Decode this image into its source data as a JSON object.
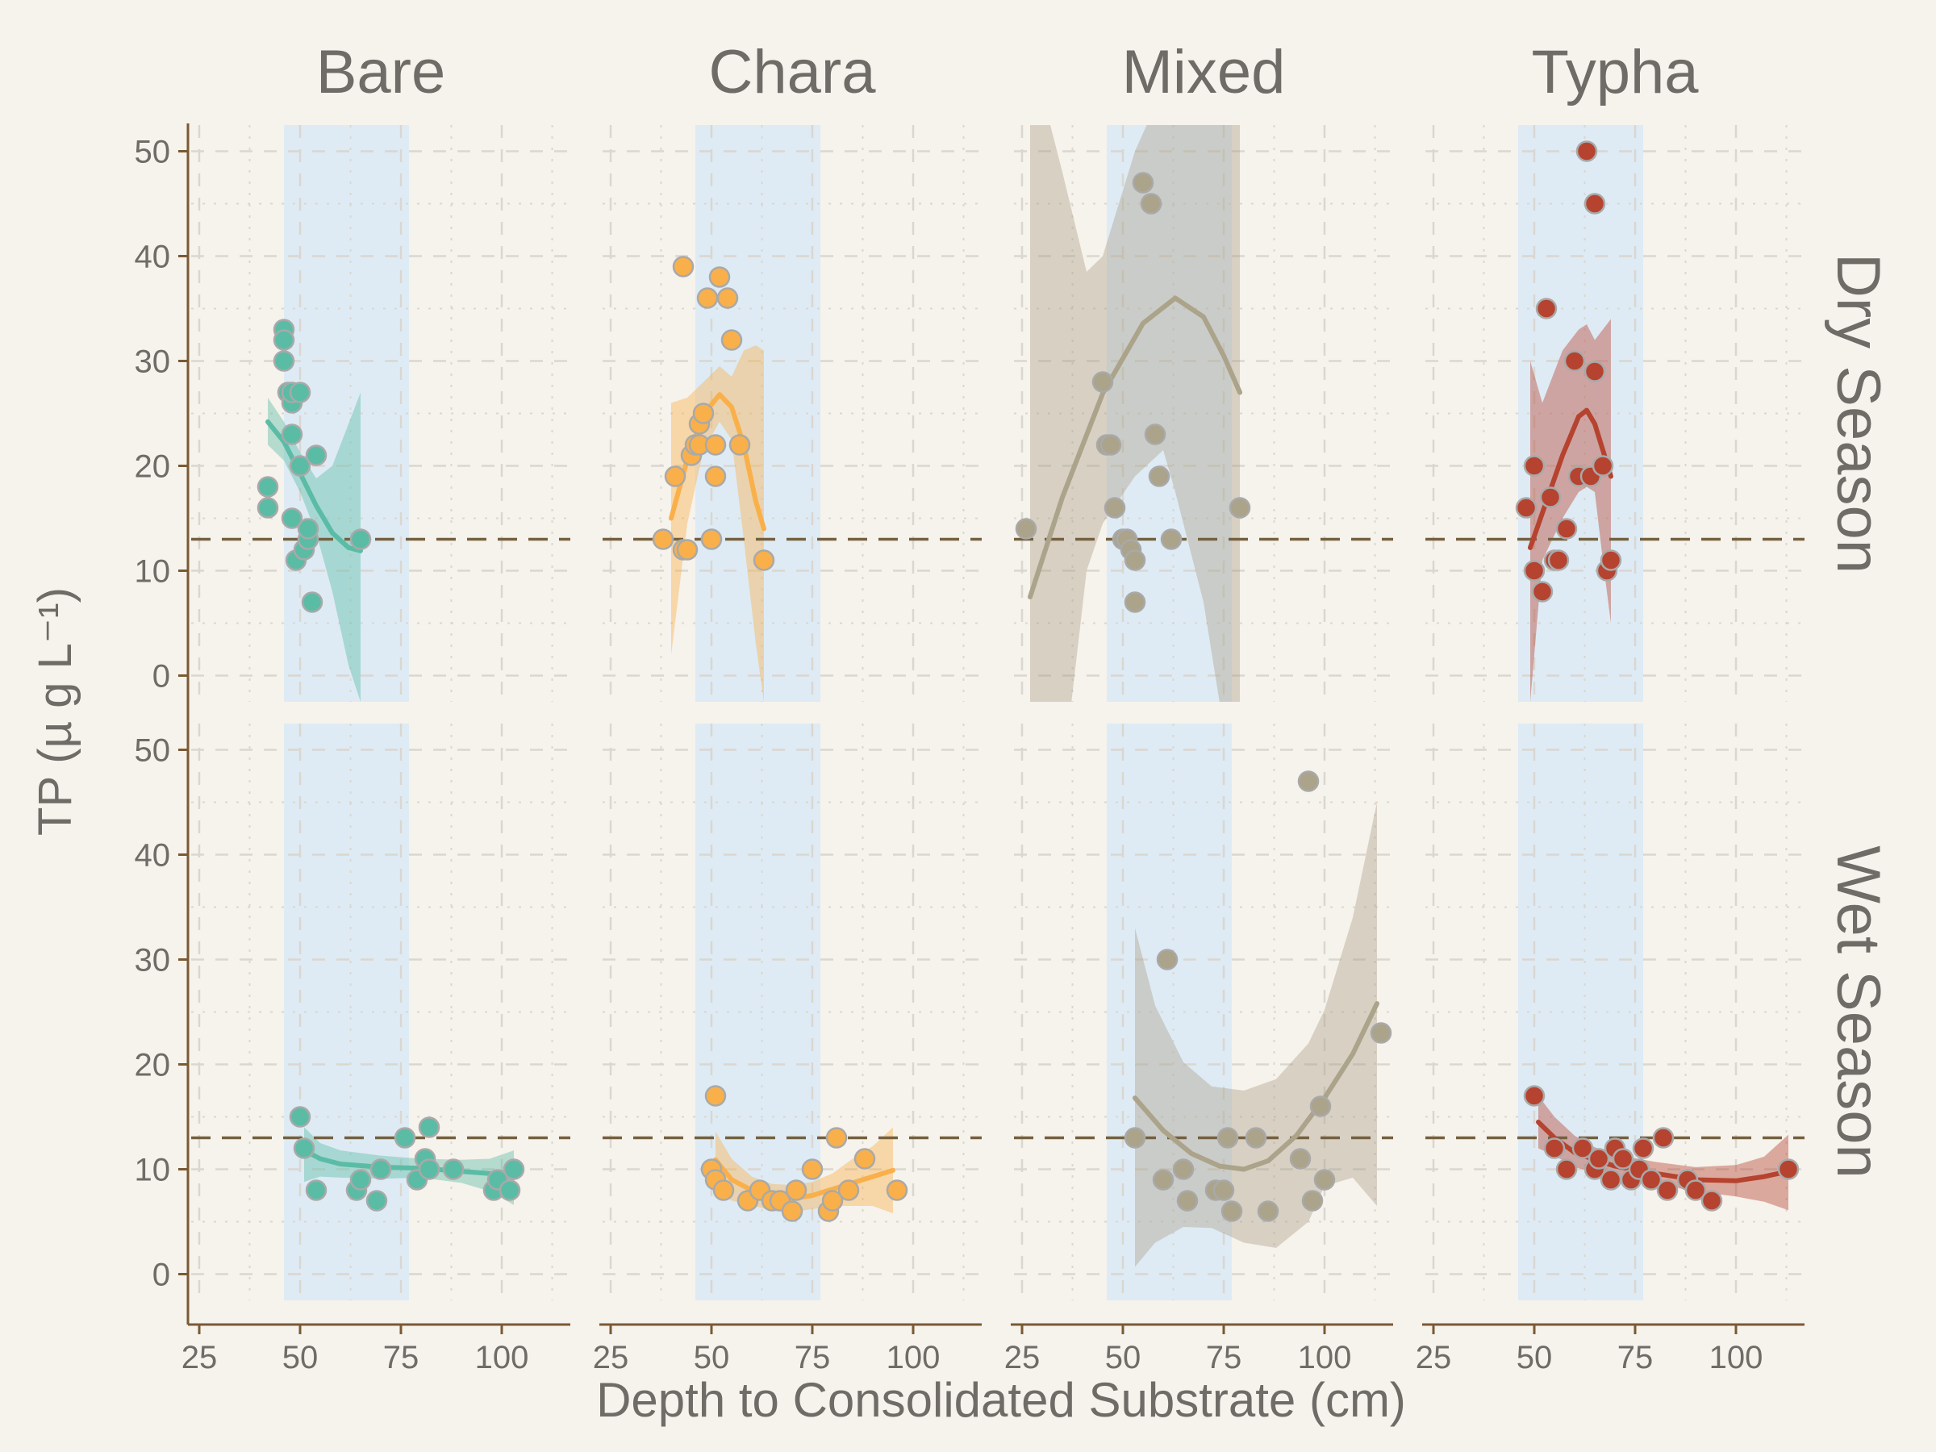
{
  "chart_data": {
    "type": "scatter",
    "facet_columns": [
      "Bare",
      "Chara",
      "Mixed",
      "Typha"
    ],
    "facet_rows": [
      "Dry Season",
      "Wet Season"
    ],
    "xlabel": "Depth to Consolidated Substrate (cm)",
    "ylabel": "TP (µ g L⁻¹)",
    "xlim": [
      23,
      117
    ],
    "ylim": [
      -2.5,
      52.5
    ],
    "x_ticks": [
      25,
      50,
      75,
      100
    ],
    "y_ticks": [
      0,
      10,
      20,
      30,
      40,
      50
    ],
    "reference_line_y": 13,
    "shaded_band_x": [
      46,
      77
    ],
    "grid": true,
    "colors": {
      "Bare": "#5BBCA5",
      "Chara": "#F9B04A",
      "Mixed": "#ABA38A",
      "Typha": "#B5432F",
      "band": "#DEEBF4",
      "background": "#F6F2EC",
      "axis": "#7A5A33",
      "refline": "#74603F",
      "grid": "#DAD6D0",
      "text": "#6F6B66"
    },
    "panels": [
      {
        "column": "Bare",
        "row": "Dry Season",
        "points": [
          [
            42,
            18
          ],
          [
            42,
            16
          ],
          [
            46,
            33
          ],
          [
            46,
            32
          ],
          [
            46,
            30
          ],
          [
            47,
            27
          ],
          [
            48,
            26
          ],
          [
            48,
            27
          ],
          [
            48,
            23
          ],
          [
            48,
            15
          ],
          [
            49,
            11
          ],
          [
            50,
            27
          ],
          [
            50,
            20
          ],
          [
            51,
            12
          ],
          [
            52,
            13
          ],
          [
            52,
            14
          ],
          [
            53,
            7
          ],
          [
            54,
            21
          ],
          [
            65,
            13
          ]
        ],
        "fit": [
          [
            42,
            24.2
          ],
          [
            46,
            22.3
          ],
          [
            50,
            19.3
          ],
          [
            54,
            16.2
          ],
          [
            58,
            13.6
          ],
          [
            62,
            12.2
          ],
          [
            65,
            11.9
          ]
        ],
        "ci": [
          [
            42,
            26.5,
            22.0
          ],
          [
            46,
            24.2,
            20.5
          ],
          [
            50,
            21.3,
            17.5
          ],
          [
            54,
            18.8,
            13.6
          ],
          [
            58,
            20.0,
            8.0
          ],
          [
            62,
            24.0,
            1.0
          ],
          [
            65,
            27.0,
            -2.5
          ]
        ]
      },
      {
        "column": "Chara",
        "row": "Dry Season",
        "points": [
          [
            38,
            13
          ],
          [
            41,
            19
          ],
          [
            43,
            39
          ],
          [
            43,
            12
          ],
          [
            44,
            12
          ],
          [
            45,
            21
          ],
          [
            46,
            22
          ],
          [
            47,
            24
          ],
          [
            47,
            22
          ],
          [
            48,
            25
          ],
          [
            49,
            36
          ],
          [
            50,
            13
          ],
          [
            51,
            19
          ],
          [
            51,
            22
          ],
          [
            52,
            38
          ],
          [
            54,
            36
          ],
          [
            55,
            32
          ],
          [
            57,
            22
          ],
          [
            63,
            11
          ]
        ],
        "fit": [
          [
            40,
            15.0
          ],
          [
            44,
            20.6
          ],
          [
            48,
            24.9
          ],
          [
            52,
            26.8
          ],
          [
            55,
            25.6
          ],
          [
            58,
            22.0
          ],
          [
            61,
            16.6
          ],
          [
            63,
            14.0
          ]
        ],
        "ci": [
          [
            40,
            26.0,
            2.0
          ],
          [
            44,
            26.5,
            14.5
          ],
          [
            48,
            28.0,
            21.5
          ],
          [
            52,
            29.5,
            24.2
          ],
          [
            55,
            28.5,
            22.5
          ],
          [
            58,
            31.0,
            13.0
          ],
          [
            61,
            31.5,
            3.0
          ],
          [
            63,
            31.0,
            -2.5
          ]
        ]
      },
      {
        "column": "Mixed",
        "row": "Dry Season",
        "points": [
          [
            26,
            14
          ],
          [
            45,
            28
          ],
          [
            46,
            22
          ],
          [
            47,
            22
          ],
          [
            48,
            16
          ],
          [
            50,
            13
          ],
          [
            51,
            13
          ],
          [
            52,
            12
          ],
          [
            53,
            11
          ],
          [
            53,
            7
          ],
          [
            55,
            47
          ],
          [
            57,
            45
          ],
          [
            58,
            23
          ],
          [
            59,
            19
          ],
          [
            62,
            13
          ],
          [
            79,
            16
          ]
        ],
        "fit": [
          [
            27,
            7.5
          ],
          [
            35,
            17.0
          ],
          [
            45,
            26.9
          ],
          [
            55,
            33.6
          ],
          [
            63,
            36.0
          ],
          [
            70,
            34.2
          ],
          [
            75,
            30.5
          ],
          [
            79,
            27.0
          ]
        ],
        "ci": [
          [
            27,
            60.0,
            -45.0
          ],
          [
            35,
            48.0,
            -10.0
          ],
          [
            41,
            38.5,
            10.0
          ],
          [
            45,
            40.0,
            14.5
          ],
          [
            53,
            50.0,
            19.0
          ],
          [
            60,
            56.0,
            21.5
          ],
          [
            63,
            58.0,
            17.5
          ],
          [
            70,
            62.0,
            7.0
          ],
          [
            75,
            65.0,
            -5.0
          ],
          [
            79,
            68.0,
            -15.0
          ]
        ]
      },
      {
        "column": "Typha",
        "row": "Dry Season",
        "points": [
          [
            48,
            16
          ],
          [
            50,
            20
          ],
          [
            50,
            10
          ],
          [
            52,
            8
          ],
          [
            53,
            35
          ],
          [
            54,
            17
          ],
          [
            55,
            11
          ],
          [
            56,
            11
          ],
          [
            58,
            14
          ],
          [
            60,
            30
          ],
          [
            61,
            19
          ],
          [
            63,
            50
          ],
          [
            64,
            19
          ],
          [
            65,
            29
          ],
          [
            65,
            45
          ],
          [
            67,
            20
          ],
          [
            68,
            10
          ],
          [
            69,
            11
          ]
        ],
        "fit": [
          [
            49,
            12.2
          ],
          [
            53,
            16.6
          ],
          [
            57,
            21.0
          ],
          [
            61,
            24.7
          ],
          [
            63,
            25.3
          ],
          [
            65,
            24.0
          ],
          [
            67,
            21.5
          ],
          [
            69,
            19.0
          ]
        ],
        "ci": [
          [
            49,
            30.0,
            -2.5
          ],
          [
            52,
            26.0,
            11.0
          ],
          [
            57,
            31.0,
            15.0
          ],
          [
            61,
            33.0,
            17.5
          ],
          [
            63,
            33.5,
            18.0
          ],
          [
            65,
            32.0,
            17.5
          ],
          [
            67,
            33.0,
            11.0
          ],
          [
            69,
            34.0,
            5.0
          ]
        ]
      },
      {
        "column": "Bare",
        "row": "Wet Season",
        "points": [
          [
            50,
            15
          ],
          [
            51,
            12
          ],
          [
            54,
            8
          ],
          [
            64,
            8
          ],
          [
            65,
            9
          ],
          [
            69,
            7
          ],
          [
            70,
            10
          ],
          [
            76,
            13
          ],
          [
            79,
            9
          ],
          [
            81,
            11
          ],
          [
            82,
            14
          ],
          [
            82,
            10
          ],
          [
            88,
            10
          ],
          [
            98,
            8
          ],
          [
            99,
            9
          ],
          [
            102,
            8
          ],
          [
            103,
            10
          ]
        ],
        "fit": [
          [
            51,
            11.8
          ],
          [
            55,
            11.0
          ],
          [
            60,
            10.5
          ],
          [
            70,
            10.2
          ],
          [
            80,
            10.1
          ],
          [
            90,
            9.8
          ],
          [
            97,
            9.6
          ],
          [
            103,
            9.2
          ]
        ],
        "ci": [
          [
            51,
            14.0,
            8.8
          ],
          [
            55,
            12.5,
            9.3
          ],
          [
            60,
            11.8,
            9.2
          ],
          [
            70,
            11.3,
            9.1
          ],
          [
            80,
            11.0,
            9.2
          ],
          [
            90,
            10.9,
            8.7
          ],
          [
            97,
            11.0,
            7.9
          ],
          [
            103,
            11.8,
            6.6
          ]
        ]
      },
      {
        "column": "Chara",
        "row": "Wet Season",
        "points": [
          [
            50,
            10
          ],
          [
            51,
            17
          ],
          [
            51,
            9
          ],
          [
            53,
            8
          ],
          [
            59,
            7
          ],
          [
            62,
            8
          ],
          [
            65,
            7
          ],
          [
            67,
            7
          ],
          [
            70,
            6
          ],
          [
            71,
            8
          ],
          [
            75,
            10
          ],
          [
            79,
            6
          ],
          [
            80,
            7
          ],
          [
            81,
            13
          ],
          [
            84,
            8
          ],
          [
            88,
            11
          ],
          [
            96,
            8
          ]
        ],
        "fit": [
          [
            51,
            10.9
          ],
          [
            55,
            9.0
          ],
          [
            60,
            8.0
          ],
          [
            65,
            7.3
          ],
          [
            70,
            7.2
          ],
          [
            75,
            7.5
          ],
          [
            80,
            8.1
          ],
          [
            85,
            8.7
          ],
          [
            90,
            9.3
          ],
          [
            95,
            9.9
          ]
        ],
        "ci": [
          [
            51,
            13.6,
            8.2
          ],
          [
            55,
            11.0,
            7.0
          ],
          [
            60,
            9.3,
            6.6
          ],
          [
            65,
            8.6,
            6.0
          ],
          [
            70,
            8.5,
            5.9
          ],
          [
            75,
            8.8,
            6.2
          ],
          [
            80,
            9.6,
            6.5
          ],
          [
            85,
            11.0,
            6.5
          ],
          [
            90,
            12.2,
            6.5
          ],
          [
            95,
            14.0,
            5.8
          ]
        ]
      },
      {
        "column": "Mixed",
        "row": "Wet Season",
        "points": [
          [
            53,
            13
          ],
          [
            60,
            9
          ],
          [
            61,
            30
          ],
          [
            65,
            10
          ],
          [
            66,
            7
          ],
          [
            73,
            8
          ],
          [
            75,
            8
          ],
          [
            76,
            13
          ],
          [
            77,
            6
          ],
          [
            83,
            13
          ],
          [
            86,
            6
          ],
          [
            94,
            11
          ],
          [
            96,
            47
          ],
          [
            97,
            7
          ],
          [
            99,
            16
          ],
          [
            100,
            9
          ],
          [
            114,
            23
          ]
        ],
        "fit": [
          [
            53,
            16.8
          ],
          [
            60,
            13.7
          ],
          [
            67,
            11.5
          ],
          [
            74,
            10.3
          ],
          [
            80,
            10.0
          ],
          [
            86,
            10.8
          ],
          [
            93,
            13.2
          ],
          [
            100,
            16.8
          ],
          [
            107,
            21.0
          ],
          [
            113,
            25.8
          ]
        ],
        "ci": [
          [
            53,
            33.0,
            0.7
          ],
          [
            58,
            25.6,
            3.0
          ],
          [
            65,
            20.2,
            4.5
          ],
          [
            72,
            17.9,
            4.4
          ],
          [
            80,
            17.5,
            3.0
          ],
          [
            88,
            18.6,
            2.5
          ],
          [
            96,
            22.0,
            5.0
          ],
          [
            100,
            25.2,
            8.4
          ],
          [
            107,
            34.0,
            9.2
          ],
          [
            113,
            45.0,
            6.5
          ]
        ]
      },
      {
        "column": "Typha",
        "row": "Wet Season",
        "points": [
          [
            50,
            17
          ],
          [
            55,
            12
          ],
          [
            58,
            10
          ],
          [
            62,
            12
          ],
          [
            65,
            10
          ],
          [
            66,
            11
          ],
          [
            69,
            9
          ],
          [
            70,
            12
          ],
          [
            72,
            11
          ],
          [
            74,
            9
          ],
          [
            76,
            10
          ],
          [
            77,
            12
          ],
          [
            79,
            9
          ],
          [
            82,
            13
          ],
          [
            83,
            8
          ],
          [
            88,
            9
          ],
          [
            90,
            8
          ],
          [
            94,
            7
          ],
          [
            113,
            10
          ]
        ],
        "fit": [
          [
            51,
            14.5
          ],
          [
            55,
            13.0
          ],
          [
            60,
            11.6
          ],
          [
            65,
            10.9
          ],
          [
            70,
            10.3
          ],
          [
            80,
            9.6
          ],
          [
            90,
            9.0
          ],
          [
            100,
            8.9
          ],
          [
            107,
            9.3
          ],
          [
            113,
            9.8
          ]
        ],
        "ci": [
          [
            51,
            17.0,
            12.0
          ],
          [
            55,
            15.0,
            11.3
          ],
          [
            60,
            13.2,
            10.2
          ],
          [
            65,
            12.1,
            9.7
          ],
          [
            70,
            11.4,
            9.3
          ],
          [
            80,
            10.7,
            8.6
          ],
          [
            90,
            10.2,
            7.9
          ],
          [
            100,
            10.4,
            7.4
          ],
          [
            107,
            11.2,
            6.9
          ],
          [
            113,
            13.3,
            6.1
          ]
        ]
      }
    ]
  }
}
